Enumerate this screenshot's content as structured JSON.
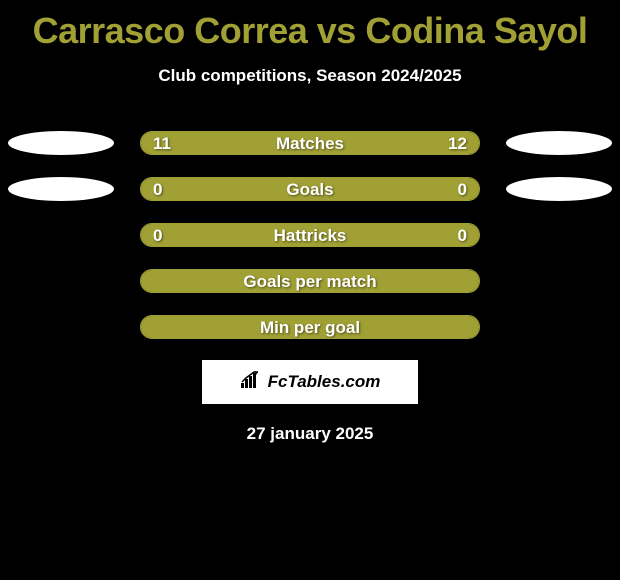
{
  "title": "Carrasco Correa vs Codina Sayol",
  "subtitle": "Club competitions, Season 2024/2025",
  "date": "27 january 2025",
  "brand": "FcTables.com",
  "colors": {
    "title": "#a1a035",
    "pill_border": "#a1a035",
    "pill_fill": "#a1a035",
    "ellipse": "#ffffff",
    "text": "#ffffff",
    "background": "#000000"
  },
  "rows": [
    {
      "label": "Matches",
      "left_value": "11",
      "right_value": "12",
      "left_pct": 48,
      "right_pct": 52,
      "left_fill_color": "#a1a035",
      "right_fill_color": "#a1a035",
      "show_left_ellipse": true,
      "show_right_ellipse": true
    },
    {
      "label": "Goals",
      "left_value": "0",
      "right_value": "0",
      "left_pct": 50,
      "right_pct": 50,
      "left_fill_color": "#a1a035",
      "right_fill_color": "#a1a035",
      "show_left_ellipse": true,
      "show_right_ellipse": true
    },
    {
      "label": "Hattricks",
      "left_value": "0",
      "right_value": "0",
      "left_pct": 50,
      "right_pct": 50,
      "left_fill_color": "#a1a035",
      "right_fill_color": "#a1a035",
      "show_left_ellipse": false,
      "show_right_ellipse": false
    },
    {
      "label": "Goals per match",
      "left_value": "",
      "right_value": "",
      "left_pct": 100,
      "right_pct": 0,
      "left_fill_color": "#a1a035",
      "right_fill_color": "#a1a035",
      "show_left_ellipse": false,
      "show_right_ellipse": false
    },
    {
      "label": "Min per goal",
      "left_value": "",
      "right_value": "",
      "left_pct": 100,
      "right_pct": 0,
      "left_fill_color": "#a1a035",
      "right_fill_color": "#a1a035",
      "show_left_ellipse": false,
      "show_right_ellipse": false
    }
  ]
}
